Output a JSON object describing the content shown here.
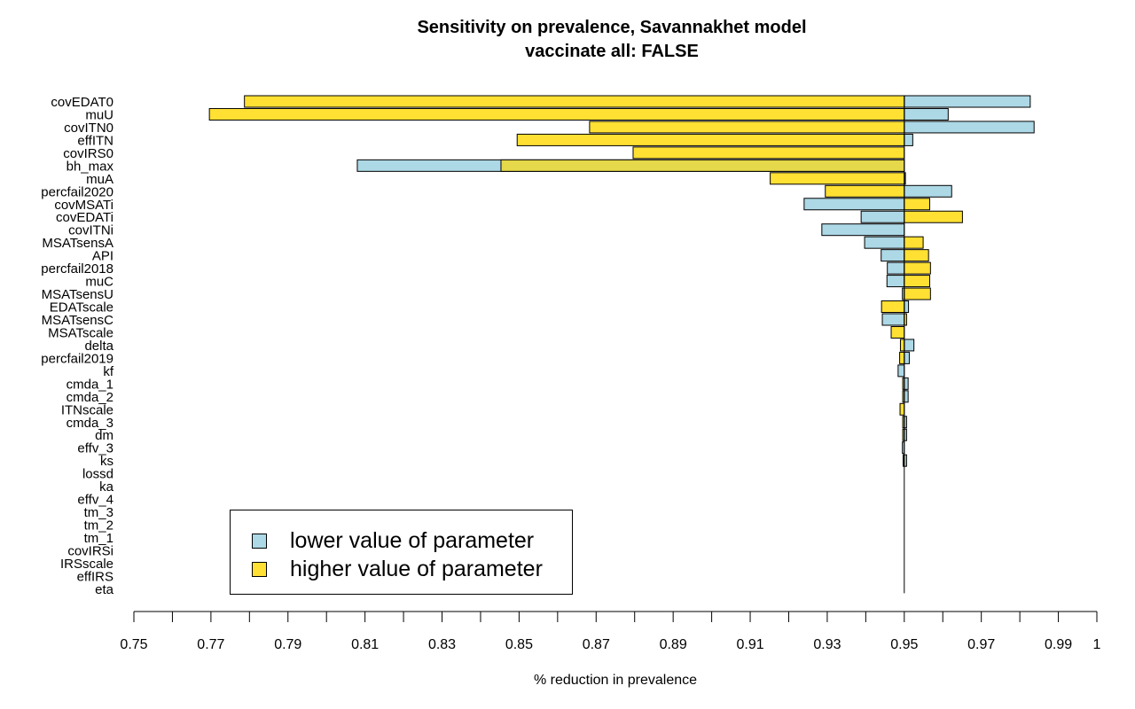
{
  "colors": {
    "lower": "#add8e6",
    "higher": "#ffe033",
    "overlap": "#e5d84a"
  },
  "legend": {
    "lower_label": "lower value of parameter",
    "higher_label": "higher value of parameter"
  },
  "chart_data": {
    "type": "bar",
    "orientation": "horizontal",
    "title": "Sensitivity on prevalence, Savannakhet model",
    "subtitle": "vaccinate all: FALSE",
    "xlabel": "% reduction in prevalence",
    "ylabel": "",
    "baseline": 0.95,
    "xlim": [
      0.75,
      1
    ],
    "x_ticks": [
      0.75,
      0.77,
      0.79,
      0.81,
      0.83,
      0.85,
      0.87,
      0.89,
      0.91,
      0.93,
      0.95,
      0.97,
      0.99,
      1
    ],
    "legend_position": "bottom-left",
    "grid": false,
    "categories": [
      "covEDAT0",
      "muU",
      "covITN0",
      "effITN",
      "covIRS0",
      "bh_max",
      "muA",
      "percfail2020",
      "covMSATi",
      "covEDATi",
      "covITNi",
      "MSATsensA",
      "API",
      "percfail2018",
      "muC",
      "MSATsensU",
      "EDATscale",
      "MSATsensC",
      "MSATscale",
      "delta",
      "percfail2019",
      "kf",
      "cmda_1",
      "cmda_2",
      "ITNscale",
      "cmda_3",
      "dm",
      "effv_3",
      "ks",
      "lossd",
      "ka",
      "effv_4",
      "tm_3",
      "tm_2",
      "tm_1",
      "covIRSi",
      "IRSscale",
      "effIRS",
      "eta"
    ],
    "series": [
      {
        "name": "lower value of parameter",
        "values": [
          0.9827,
          0.9614,
          0.9837,
          0.9522,
          0.95,
          0.808,
          0.9503,
          0.9623,
          0.924,
          0.9388,
          0.9286,
          0.9397,
          0.944,
          0.9456,
          0.9455,
          0.9495,
          0.9511,
          0.9443,
          0.95,
          0.9525,
          0.9513,
          0.9484,
          0.951,
          0.951,
          0.95,
          0.9506,
          0.9506,
          0.9495,
          0.9506,
          0.95,
          0.95,
          0.95,
          0.95,
          0.95,
          0.95,
          0.95,
          0.95,
          0.95,
          0.95
        ]
      },
      {
        "name": "higher value of parameter",
        "values": [
          0.7787,
          0.7696,
          0.8683,
          0.8495,
          0.8796,
          0.8453,
          0.9152,
          0.9295,
          0.9566,
          0.9651,
          0.95,
          0.9549,
          0.9563,
          0.9568,
          0.9566,
          0.9568,
          0.9441,
          0.9506,
          0.9466,
          0.949,
          0.9488,
          0.95,
          0.9496,
          0.9496,
          0.9489,
          0.9496,
          0.9496,
          0.95,
          0.9497,
          0.95,
          0.95,
          0.95,
          0.95,
          0.95,
          0.95,
          0.95,
          0.95,
          0.95,
          0.95
        ]
      }
    ]
  }
}
